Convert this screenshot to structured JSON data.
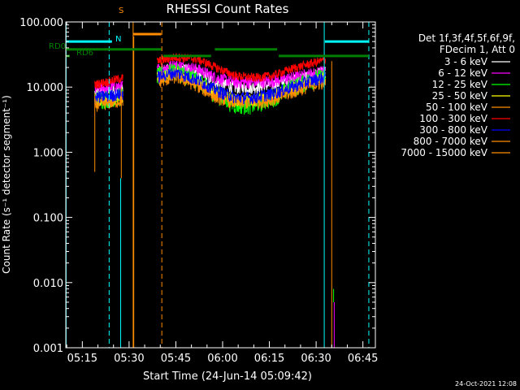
{
  "chart_data": {
    "type": "line",
    "title": "RHESSI Count Rates",
    "xlabel": "Start Time (24-Jun-14 05:09:42)",
    "ylabel": "Count Rate (s⁻¹ detector segment⁻¹)",
    "yscale": "log",
    "ylim": [
      0.001,
      100
    ],
    "xlim_minutes": [
      69.7,
      169.0
    ],
    "y_ticks": [
      "0.001",
      "0.010",
      "0.100",
      "1.000",
      "10.000",
      "100.000"
    ],
    "x_ticks": [
      {
        "label": "05:15",
        "min": 75
      },
      {
        "label": "05:30",
        "min": 90
      },
      {
        "label": "05:45",
        "min": 105
      },
      {
        "label": "06:00",
        "min": 120
      },
      {
        "label": "06:15",
        "min": 135
      },
      {
        "label": "06:30",
        "min": 150
      },
      {
        "label": "06:45",
        "min": 165
      }
    ],
    "legend": {
      "position": "right",
      "header": [
        "Det 1f,3f,4f,5f,6f,9f,",
        "FDecim 1, Att 0"
      ],
      "entries": [
        {
          "label": "3 - 6 keV",
          "color": "#ffffff"
        },
        {
          "label": "6 - 12 keV",
          "color": "#ff00ff"
        },
        {
          "label": "12 - 25 keV",
          "color": "#00ff00"
        },
        {
          "label": "25 - 50 keV",
          "color": "#ffff00"
        },
        {
          "label": "50 - 100 keV",
          "color": "#ff8c00"
        },
        {
          "label": "100 - 300 keV",
          "color": "#ff0000"
        },
        {
          "label": "300 - 800 keV",
          "color": "#0000ff"
        },
        {
          "label": "800 - 7000 keV",
          "color": "#ff8c00"
        },
        {
          "label": "7000 - 15000 keV",
          "color": "#ff8c00"
        }
      ]
    },
    "series": [
      {
        "name": "3 - 6 keV",
        "color": "#ffffff",
        "segments": [
          [
            [
              79,
              8.2
            ],
            [
              84,
              8.8
            ],
            [
              88,
              9.3
            ]
          ],
          [
            [
              99,
              17
            ],
            [
              105,
              20
            ],
            [
              112,
              17
            ],
            [
              118,
              12
            ],
            [
              124,
              10
            ],
            [
              130,
              10
            ],
            [
              136,
              11
            ],
            [
              142,
              13
            ],
            [
              148,
              15
            ],
            [
              153,
              17
            ]
          ]
        ]
      },
      {
        "name": "6 - 12 keV",
        "color": "#ff00ff",
        "segments": [
          [
            [
              79,
              9.5
            ],
            [
              84,
              10
            ],
            [
              88,
              10.5
            ]
          ],
          [
            [
              99,
              19
            ],
            [
              105,
              22
            ],
            [
              112,
              19
            ],
            [
              118,
              14
            ],
            [
              124,
              12
            ],
            [
              130,
              12
            ],
            [
              136,
              12.5
            ],
            [
              142,
              14
            ],
            [
              148,
              16
            ],
            [
              153,
              18
            ]
          ]
        ]
      },
      {
        "name": "12 - 25 keV",
        "color": "#00ff00",
        "segments": [
          [
            [
              79,
              6.5
            ],
            [
              84,
              7
            ],
            [
              88,
              7.5
            ]
          ],
          [
            [
              99,
              15
            ],
            [
              105,
              18
            ],
            [
              112,
              13
            ],
            [
              118,
              8
            ],
            [
              124,
              5.5
            ],
            [
              130,
              5.5
            ],
            [
              136,
              7
            ],
            [
              142,
              10
            ],
            [
              148,
              13
            ],
            [
              153,
              15
            ]
          ]
        ]
      },
      {
        "name": "25 - 50 keV",
        "color": "#ffff00",
        "segments": [
          [
            [
              79,
              6
            ],
            [
              84,
              6.5
            ],
            [
              88,
              7
            ]
          ],
          [
            [
              99,
              14
            ],
            [
              105,
              17
            ],
            [
              112,
              12
            ],
            [
              118,
              8
            ],
            [
              124,
              6.5
            ],
            [
              130,
              6.5
            ],
            [
              136,
              7.5
            ],
            [
              142,
              9.5
            ],
            [
              148,
              12
            ],
            [
              153,
              14
            ]
          ]
        ]
      },
      {
        "name": "50 - 100 keV",
        "color": "#ff8c00",
        "segments": [
          [
            [
              79,
              5.3
            ],
            [
              84,
              5.8
            ],
            [
              88,
              6.3
            ]
          ],
          [
            [
              99,
              12
            ],
            [
              105,
              14.5
            ],
            [
              112,
              10.5
            ],
            [
              118,
              7
            ],
            [
              124,
              5.8
            ],
            [
              130,
              5.8
            ],
            [
              136,
              6.5
            ],
            [
              142,
              8.2
            ],
            [
              148,
              10.5
            ],
            [
              153,
              12
            ]
          ]
        ]
      },
      {
        "name": "100 - 300 keV",
        "color": "#ff0000",
        "segments": [
          [
            [
              79,
              11
            ],
            [
              84,
              12.5
            ],
            [
              88,
              14
            ]
          ],
          [
            [
              99,
              25
            ],
            [
              105,
              29
            ],
            [
              112,
              27
            ],
            [
              118,
              20
            ],
            [
              124,
              15
            ],
            [
              130,
              14
            ],
            [
              136,
              15
            ],
            [
              142,
              19
            ],
            [
              148,
              23
            ],
            [
              153,
              26
            ]
          ]
        ]
      },
      {
        "name": "300 - 800 keV",
        "color": "#0000ff",
        "segments": [
          [
            [
              79,
              7
            ],
            [
              84,
              7.5
            ],
            [
              88,
              8
            ]
          ],
          [
            [
              99,
              14.5
            ],
            [
              105,
              17
            ],
            [
              112,
              13
            ],
            [
              118,
              9
            ],
            [
              124,
              7
            ],
            [
              130,
              7
            ],
            [
              136,
              8
            ],
            [
              142,
              10
            ],
            [
              148,
              12.5
            ],
            [
              153,
              14.5
            ]
          ]
        ]
      },
      {
        "name": "800 - 7000 keV",
        "color": "#ff8c00",
        "segments": [
          [
            [
              79,
              0.5
            ],
            [
              79,
              8
            ]
          ],
          [
            [
              87.5,
              0.4
            ],
            [
              87.5,
              10
            ]
          ]
        ]
      },
      {
        "name": "7000 - 15000 keV",
        "color": "#ff8c00",
        "segments": [
          [
            [
              91.5,
              0.001
            ],
            [
              91.5,
              60
            ]
          ],
          [
            [
              155,
              0.001
            ],
            [
              155,
              25
            ]
          ]
        ]
      }
    ],
    "annotations": {
      "vlines": [
        {
          "min": 69.8,
          "color": "#00ffff",
          "style": "solid"
        },
        {
          "min": 83.6,
          "color": "#00ffff",
          "style": "dashed"
        },
        {
          "min": 91.3,
          "color": "#ff8c00",
          "style": "solid"
        },
        {
          "min": 100.5,
          "color": "#ff8c00",
          "style": "dashed"
        },
        {
          "min": 152.6,
          "color": "#00ffff",
          "style": "solid"
        },
        {
          "min": 166.9,
          "color": "#00ffff",
          "style": "dashed"
        },
        {
          "min": 87.3,
          "color": "#00ffff",
          "style": "solid",
          "ymax": 0.4
        },
        {
          "min": 155.8,
          "color": "#ff00ff",
          "style": "solid",
          "ymax": 0.005
        },
        {
          "min": 155.6,
          "color": "#00ff00",
          "style": "solid",
          "ymin": 0.005,
          "ymax": 0.008
        }
      ],
      "hbars": [
        {
          "x0": 69.8,
          "x1": 84.5,
          "y": 50,
          "color": "#00ffff"
        },
        {
          "x0": 152.8,
          "x1": 166.9,
          "y": 50,
          "color": "#00ffff"
        },
        {
          "x0": 91.3,
          "x1": 100.3,
          "y": 65,
          "color": "#ff8c00"
        },
        {
          "x0": 69.8,
          "x1": 100.3,
          "y": 38,
          "color": "#008000"
        },
        {
          "x0": 101,
          "x1": 116.3,
          "y": 30,
          "color": "#008000"
        },
        {
          "x0": 117.5,
          "x1": 137.5,
          "y": 38,
          "color": "#008000"
        },
        {
          "x0": 138,
          "x1": 166.9,
          "y": 30,
          "color": "#008000"
        },
        {
          "x0": 69.8,
          "x1": 71,
          "y": 30,
          "color": "#008000"
        }
      ],
      "labels": [
        {
          "text": "RD0",
          "color": "#008000"
        },
        {
          "text": "RD6",
          "color": "#008000"
        },
        {
          "text": "S",
          "color": "#ff8c00"
        },
        {
          "text": "N",
          "color": "#00ffff"
        }
      ]
    }
  },
  "timestamp": "24-Oct-2021 12:08"
}
